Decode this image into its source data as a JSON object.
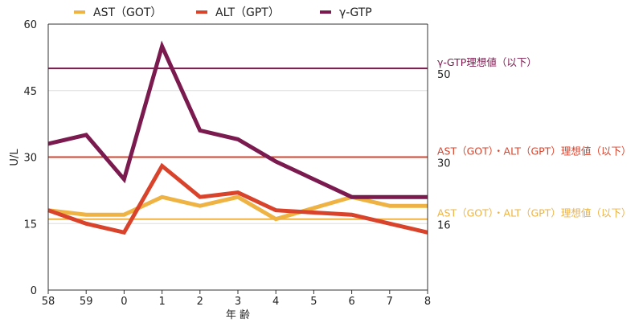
{
  "chart_data": {
    "type": "line",
    "categories": [
      "58",
      "59",
      "0",
      "1",
      "2",
      "3",
      "4",
      "5",
      "6",
      "7",
      "8"
    ],
    "xlabel": "年 齢",
    "ylabel": "U/L",
    "ylim": [
      0,
      60
    ],
    "yticks": [
      0,
      15,
      30,
      45,
      60
    ],
    "grid": true,
    "legend_position": "top",
    "series": [
      {
        "name": "AST（GOT）",
        "color": "#eeb343",
        "values": [
          18,
          17,
          17,
          21,
          19,
          21,
          16,
          18.5,
          21,
          19,
          19
        ]
      },
      {
        "name": "ALT（GPT）",
        "color": "#d9432c",
        "values": [
          18,
          15,
          13,
          28,
          21,
          22,
          18,
          17.5,
          17,
          15,
          13
        ]
      },
      {
        "name": "γ-GTP",
        "color": "#7a1a4e",
        "values": [
          33,
          35,
          25,
          55,
          36,
          34,
          29,
          25,
          21,
          21,
          21
        ]
      }
    ],
    "reference_lines": [
      {
        "label": "γ-GTP理想値（以下）",
        "value": 50,
        "value_text": "50",
        "color": "#7a1a4e"
      },
      {
        "label": "AST（GOT）・ALT（GPT）理想値（以下）",
        "value": 30,
        "value_text": "30",
        "color": "#d9432c"
      },
      {
        "label": "AST（GOT）・ALT（GPT）理想値（以下）",
        "value": 16,
        "value_text": "16",
        "color": "#eeb343"
      }
    ]
  }
}
